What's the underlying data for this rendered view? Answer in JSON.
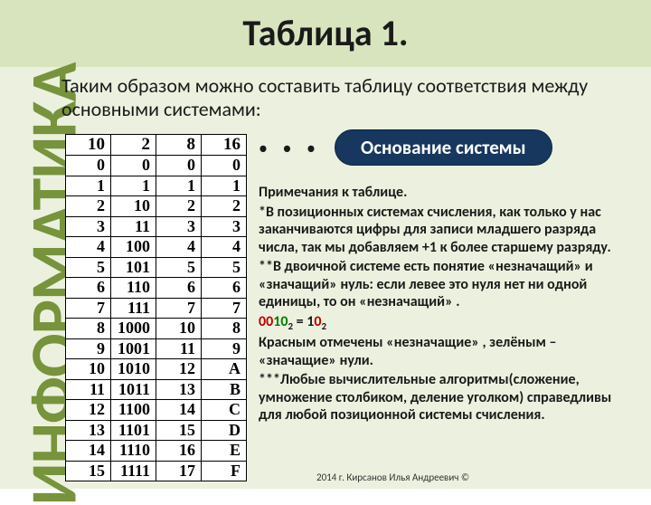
{
  "title": "Таблица 1.",
  "vertical": "ИНФОРМАТИКА",
  "intro": "Таким образом можно составить таблицу соответствия между основными системами:",
  "callout": "Основание системы",
  "table": {
    "headers": [
      "10",
      "2",
      "8",
      "16"
    ],
    "rows": [
      [
        "0",
        "0",
        "0",
        "0"
      ],
      [
        "1",
        "1",
        "1",
        "1"
      ],
      [
        "2",
        "10",
        "2",
        "2"
      ],
      [
        "3",
        "11",
        "3",
        "3"
      ],
      [
        "4",
        "100",
        "4",
        "4"
      ],
      [
        "5",
        "101",
        "5",
        "5"
      ],
      [
        "6",
        "110",
        "6",
        "6"
      ],
      [
        "7",
        "111",
        "7",
        "7"
      ],
      [
        "8",
        "1000",
        "10",
        "8"
      ],
      [
        "9",
        "1001",
        "11",
        "9"
      ],
      [
        "10",
        "1010",
        "12",
        "A"
      ],
      [
        "11",
        "1011",
        "13",
        "B"
      ],
      [
        "12",
        "1100",
        "14",
        "C"
      ],
      [
        "13",
        "1101",
        "15",
        "D"
      ],
      [
        "14",
        "1110",
        "16",
        "E"
      ],
      [
        "15",
        "1111",
        "17",
        "F"
      ]
    ]
  },
  "notes": {
    "heading": "Примечания к таблице.",
    "p1": "*В позиционных системах счисления, как только у нас заканчиваются цифры для записи младшего разряда числа, так мы добавляем +1 к более старшему разряду.",
    "p2": "**В двоичной системе есть понятие «незначащий» и «значащий» нуль: если левее это нуля нет ни одной единицы, то он «незначащий» .",
    "ex_red1": "00",
    "ex_green": "10",
    "ex_sub1": "2",
    "ex_eq": " = 1",
    "ex_red2": "0",
    "ex_sub2": "2",
    "p3": "Красным отмечены «незначащие» , зелёным – «значащие» нули.",
    "p4": "***Любые вычислительные алгоритмы(сложение, умножение столбиком, деление уголком) справедливы для любой позиционной системы счисления."
  },
  "copyright": "2014 г. Кирсанов Илья Андреевич ©"
}
